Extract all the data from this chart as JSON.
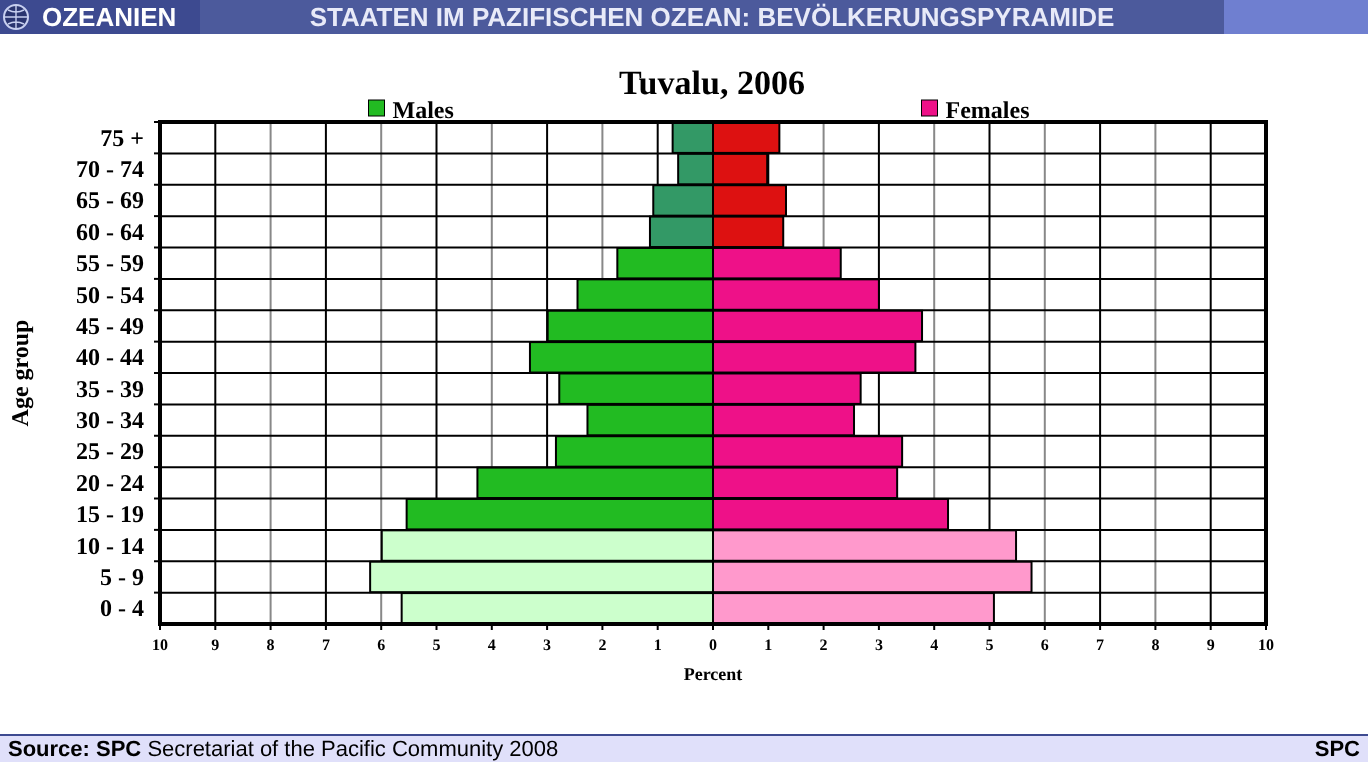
{
  "chart_data": {
    "type": "bar",
    "orientation": "horizontal",
    "stacked": true,
    "title": "Tuvalu, 2006",
    "xlabel": "Percent",
    "ylabel": "Age group",
    "annotations": [
      "OZEANIEN",
      "STAATEN IM PAZIFISCHEN OZEAN: BEVÖLKERUNGSPYRAMIDE",
      "Source: SPC Secretariat of the Pacific Community 2008",
      "SPC"
    ],
    "categories": [
      "75 +",
      "70 - 74",
      "65 - 69",
      "60 - 64",
      "55 - 59",
      "50 - 54",
      "45 - 49",
      "40 - 44",
      "35 - 39",
      "30 - 34",
      "25 - 29",
      "20 - 24",
      "15 - 19",
      "10 - 14",
      "5 - 9",
      "0 - 4"
    ],
    "series": [
      {
        "name": "Males",
        "color": "#22bb22",
        "colors": [
          "#339966",
          "#339966",
          "#339966",
          "#339966",
          "#22bb22",
          "#22bb22",
          "#22bb22",
          "#22bb22",
          "#22bb22",
          "#22bb22",
          "#22bb22",
          "#22bb22",
          "#22bb22",
          "#ccffcc",
          "#ccffcc",
          "#ccffcc"
        ],
        "values": [
          -0.73,
          -0.63,
          -1.08,
          -1.14,
          -1.73,
          -2.45,
          -2.99,
          -3.31,
          -2.78,
          -2.27,
          -2.84,
          -4.26,
          -5.54,
          -5.99,
          -6.2,
          -5.63
        ]
      },
      {
        "name": "Females",
        "color": "#ee1188",
        "colors": [
          "#dd1111",
          "#dd1111",
          "#dd1111",
          "#dd1111",
          "#ee1188",
          "#ee1188",
          "#ee1188",
          "#ee1188",
          "#ee1188",
          "#ee1188",
          "#ee1188",
          "#ee1188",
          "#ee1188",
          "#ff99cc",
          "#ff99cc",
          "#ff99cc"
        ],
        "values": [
          1.2,
          0.98,
          1.32,
          1.27,
          2.31,
          3.0,
          3.78,
          3.66,
          2.67,
          2.55,
          3.42,
          3.33,
          4.25,
          5.48,
          5.76,
          5.08
        ]
      }
    ],
    "xlim": [
      -10,
      10
    ],
    "xticks": [
      {
        "value": -10,
        "label": "10"
      },
      {
        "value": -9,
        "label": "9"
      },
      {
        "value": -8,
        "label": "8"
      },
      {
        "value": -7,
        "label": "7"
      },
      {
        "value": -6,
        "label": "6"
      },
      {
        "value": -5,
        "label": "5"
      },
      {
        "value": -4,
        "label": "4"
      },
      {
        "value": -3,
        "label": "3"
      },
      {
        "value": -2,
        "label": "2"
      },
      {
        "value": -1,
        "label": "1"
      },
      0,
      1,
      2,
      3,
      4,
      5,
      6,
      7,
      8,
      9,
      10
    ],
    "grid": "x",
    "legend": "top"
  }
}
